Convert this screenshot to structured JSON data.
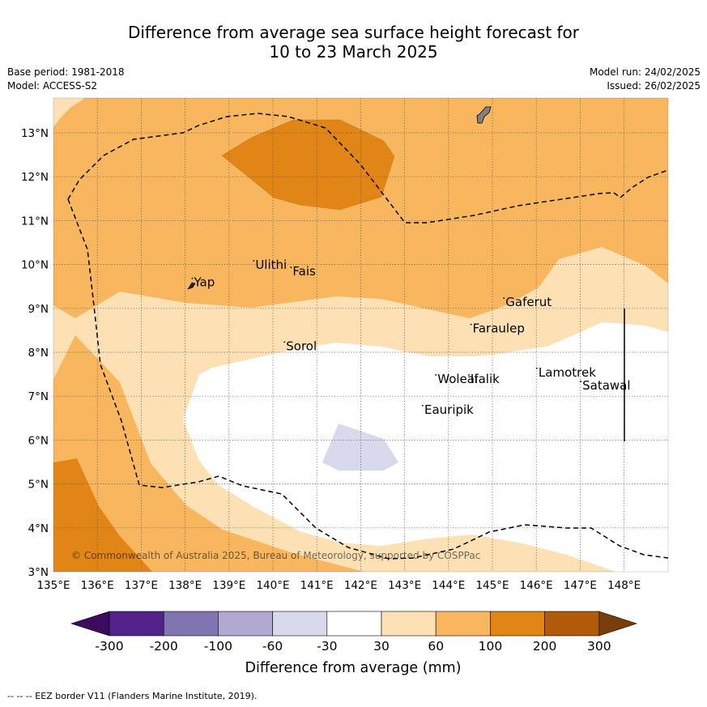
{
  "title": {
    "line1": "Difference from average sea surface height forecast for",
    "line2": "10 to 23 March 2025"
  },
  "meta_left": {
    "base_period": "Base period: 1981-2018",
    "model": "Model: ACCESS-S2"
  },
  "meta_right": {
    "model_run": "Model run: 24/02/2025",
    "issued": "Issued: 26/02/2025"
  },
  "map": {
    "lon_ticks": [
      "135°E",
      "136°E",
      "137°E",
      "138°E",
      "139°E",
      "140°E",
      "141°E",
      "142°E",
      "143°E",
      "144°E",
      "145°E",
      "146°E",
      "147°E",
      "148°E"
    ],
    "lat_ticks": [
      "3°N",
      "4°N",
      "5°N",
      "6°N",
      "7°N",
      "8°N",
      "9°N",
      "10°N",
      "11°N",
      "12°N",
      "13°N"
    ],
    "lon_range": [
      135,
      149
    ],
    "lat_range": [
      3,
      13.8
    ],
    "places": [
      {
        "name": "Yap",
        "lon": 138.2,
        "lat": 9.5
      },
      {
        "name": "Ulithi",
        "lon": 139.6,
        "lat": 9.9
      },
      {
        "name": "Fais",
        "lon": 140.45,
        "lat": 9.75
      },
      {
        "name": "Gaferut",
        "lon": 145.3,
        "lat": 9.05
      },
      {
        "name": "Faraulep",
        "lon": 144.55,
        "lat": 8.45
      },
      {
        "name": "Sorol",
        "lon": 140.3,
        "lat": 8.05
      },
      {
        "name": "Woleai",
        "lon": 143.75,
        "lat": 7.3
      },
      {
        "name": "Ifalik",
        "lon": 144.5,
        "lat": 7.3
      },
      {
        "name": "Lamotrek",
        "lon": 146.05,
        "lat": 7.45
      },
      {
        "name": "Satawal",
        "lon": 147.05,
        "lat": 7.15
      },
      {
        "name": "Eauripik",
        "lon": 143.45,
        "lat": 6.6
      }
    ],
    "copyright": "© Commonwealth of Australia 2025, Bureau of Meteorology, supported by COSPPac"
  },
  "colorbar": {
    "title": "Difference from average (mm)",
    "labels": [
      "-300",
      "-200",
      "-100",
      "-60",
      "-30",
      "30",
      "60",
      "100",
      "200",
      "300"
    ],
    "colors": [
      "#52218a",
      "#8075b0",
      "#b1a9d2",
      "#d8d9ec",
      "#ffffff",
      "#fde1b5",
      "#f8b65e",
      "#e08516",
      "#b05a0a"
    ],
    "extend_low": "#3c0a5e",
    "extend_high": "#7a3d0c"
  },
  "footnote": "--  --  -- EEZ border V11 (Flanders Marine Institute, 2019)."
}
